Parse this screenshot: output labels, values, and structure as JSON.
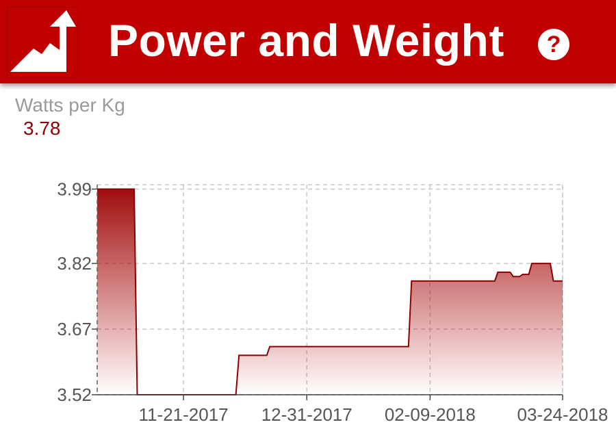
{
  "header": {
    "title": "Power and Weight",
    "logo_icon": "trending-up-mountain-icon",
    "help_icon": "help-icon",
    "help_glyph": "?",
    "background_color": "#c10000"
  },
  "metric": {
    "label": "Watts per Kg",
    "value": "3.78",
    "value_color": "#8b0000"
  },
  "chart_data": {
    "type": "area",
    "title": "",
    "xlabel": "",
    "ylabel": "",
    "line_color": "#8b0000",
    "fill_color": "#a30000",
    "grid": true,
    "x_range": [
      "2017-10-24",
      "2018-03-24"
    ],
    "ylim": [
      3.52,
      4.0
    ],
    "y_ticks": [
      "3.99",
      "3.82",
      "3.67",
      "3.52"
    ],
    "x_ticks": [
      {
        "label": "11-21-2017",
        "date": "2017-11-21"
      },
      {
        "label": "12-31-2017",
        "date": "2017-12-31"
      },
      {
        "label": "02-09-2018",
        "date": "2018-02-09"
      },
      {
        "label": "03-24-2018",
        "date": "2018-03-24"
      }
    ],
    "series": [
      {
        "points": [
          {
            "x": "2017-10-24",
            "y": 3.99
          },
          {
            "x": "2017-11-05",
            "y": 3.99
          },
          {
            "x": "2017-11-06",
            "y": 3.52
          },
          {
            "x": "2017-12-08",
            "y": 3.52
          },
          {
            "x": "2017-12-09",
            "y": 3.61
          },
          {
            "x": "2017-12-18",
            "y": 3.61
          },
          {
            "x": "2017-12-19",
            "y": 3.63
          },
          {
            "x": "2018-02-02",
            "y": 3.63
          },
          {
            "x": "2018-02-03",
            "y": 3.78
          },
          {
            "x": "2018-03-02",
            "y": 3.78
          },
          {
            "x": "2018-03-03",
            "y": 3.8
          },
          {
            "x": "2018-03-07",
            "y": 3.8
          },
          {
            "x": "2018-03-08",
            "y": 3.79
          },
          {
            "x": "2018-03-10",
            "y": 3.79
          },
          {
            "x": "2018-03-11",
            "y": 3.795
          },
          {
            "x": "2018-03-13",
            "y": 3.795
          },
          {
            "x": "2018-03-14",
            "y": 3.82
          },
          {
            "x": "2018-03-20",
            "y": 3.82
          },
          {
            "x": "2018-03-21",
            "y": 3.78
          },
          {
            "x": "2018-03-24",
            "y": 3.78
          }
        ]
      }
    ]
  }
}
